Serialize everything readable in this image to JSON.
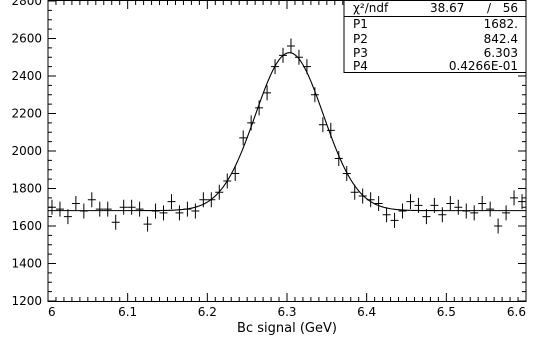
{
  "chart_data": {
    "type": "scatter",
    "title": "",
    "xlabel": "Bc signal (GeV)",
    "ylabel": "",
    "xlim": [
      6.0,
      6.6
    ],
    "ylim": [
      1200,
      2800
    ],
    "xticks": [
      "6",
      "6.1",
      "6.2",
      "6.3",
      "6.4",
      "6.5",
      "6.6"
    ],
    "yticks": [
      "1200",
      "1400",
      "1600",
      "1800",
      "2000",
      "2200",
      "2400",
      "2600",
      "2800"
    ],
    "grid": false,
    "series": [
      {
        "style": "points-with-error-bars",
        "bin_width": 0.01,
        "y_error": 40,
        "x": [
          6.005,
          6.015,
          6.025,
          6.035,
          6.045,
          6.055,
          6.065,
          6.075,
          6.085,
          6.095,
          6.105,
          6.115,
          6.125,
          6.135,
          6.145,
          6.155,
          6.165,
          6.175,
          6.185,
          6.195,
          6.205,
          6.215,
          6.225,
          6.235,
          6.245,
          6.255,
          6.265,
          6.275,
          6.285,
          6.295,
          6.305,
          6.315,
          6.325,
          6.335,
          6.345,
          6.355,
          6.365,
          6.375,
          6.385,
          6.395,
          6.405,
          6.415,
          6.425,
          6.435,
          6.445,
          6.455,
          6.465,
          6.475,
          6.485,
          6.495,
          6.505,
          6.515,
          6.525,
          6.535,
          6.545,
          6.555,
          6.565,
          6.575,
          6.585,
          6.595
        ],
        "y": [
          1700,
          1690,
          1650,
          1720,
          1680,
          1740,
          1690,
          1690,
          1620,
          1700,
          1700,
          1690,
          1610,
          1680,
          1670,
          1730,
          1670,
          1690,
          1680,
          1740,
          1740,
          1780,
          1840,
          1880,
          2070,
          2150,
          2230,
          2310,
          2450,
          2510,
          2560,
          2500,
          2450,
          2300,
          2140,
          2110,
          1960,
          1880,
          1780,
          1760,
          1740,
          1720,
          1660,
          1630,
          1680,
          1730,
          1710,
          1650,
          1710,
          1660,
          1720,
          1700,
          1680,
          1670,
          1720,
          1690,
          1600,
          1670,
          1750,
          1730
        ]
      },
      {
        "style": "fit-curve",
        "x": [
          6.0,
          6.6
        ]
      }
    ],
    "fit_parameters": {
      "background": 1682.0,
      "amplitude": 842.4,
      "mean": 6.303,
      "sigma": 0.04266
    },
    "stats_box": {
      "position": "top-right",
      "header": {
        "label": "χ²/ndf",
        "value": "38.67",
        "separator": "/",
        "ndf": "56"
      },
      "rows": [
        {
          "label": "P1",
          "value": "1682."
        },
        {
          "label": "P2",
          "value": "842.4"
        },
        {
          "label": "P3",
          "value": "6.303"
        },
        {
          "label": "P4",
          "value": "0.4266E-01"
        }
      ]
    }
  }
}
